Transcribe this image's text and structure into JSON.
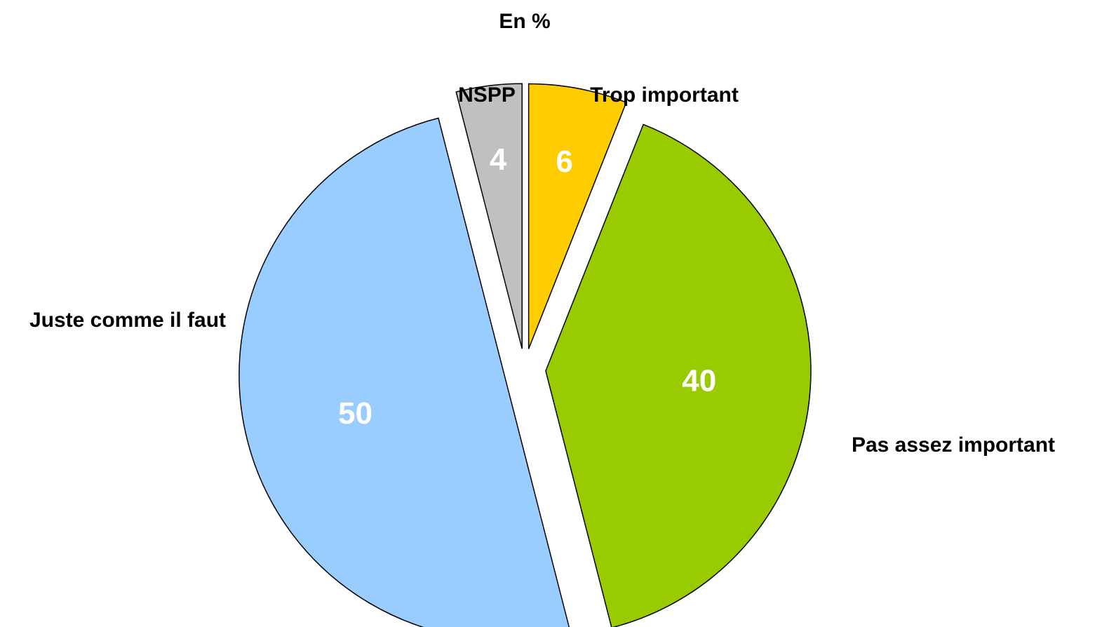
{
  "chart_data": {
    "type": "pie",
    "title": "En %",
    "slices": [
      {
        "label": "Trop important",
        "value": 6,
        "color": "#FFCC00"
      },
      {
        "label": "Pas assez important",
        "value": 40,
        "color": "#99CC00"
      },
      {
        "label": "Juste comme il faut",
        "value": 50,
        "color": "#99CCFF"
      },
      {
        "label": "NSPP",
        "value": 4,
        "color": "#C0C0C0"
      }
    ],
    "exploded": true
  }
}
